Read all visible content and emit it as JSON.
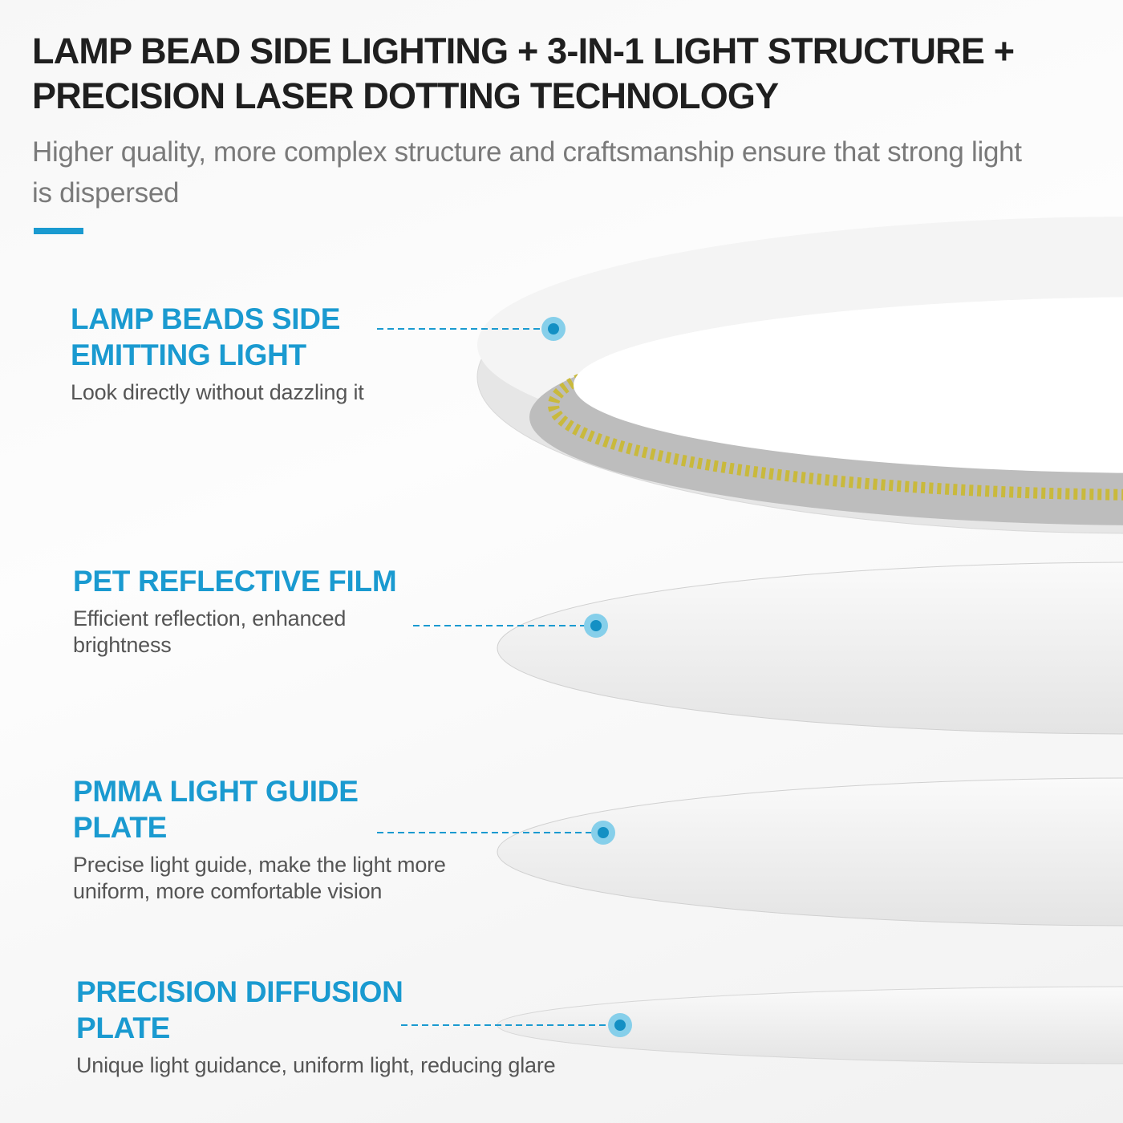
{
  "title": "LAMP BEAD SIDE LIGHTING + 3-IN-1 LIGHT STRUCTURE + PRECISION LASER DOTTING TECHNOLOGY",
  "subtitle": "Higher quality, more complex structure and craftsmanship ensure that strong light is dispersed",
  "colors": {
    "accent": "#1a9ad0",
    "heading": "#1f1f1f",
    "dot_outer": "#86cfea",
    "dot_inner": "#1390c4"
  },
  "layers": [
    {
      "heading": "LAMP BEADS SIDE EMITTING LIGHT",
      "description": "Look directly without dazzling it"
    },
    {
      "heading": "PET REFLECTIVE FILM",
      "description": "Efficient reflection, enhanced brightness"
    },
    {
      "heading": "PMMA LIGHT GUIDE PLATE",
      "description": "Precise light guide, make the light more uniform, more comfortable vision"
    },
    {
      "heading": "PRECISION DIFFUSION PLATE",
      "description": "Unique light guidance, uniform light, reducing glare"
    }
  ]
}
